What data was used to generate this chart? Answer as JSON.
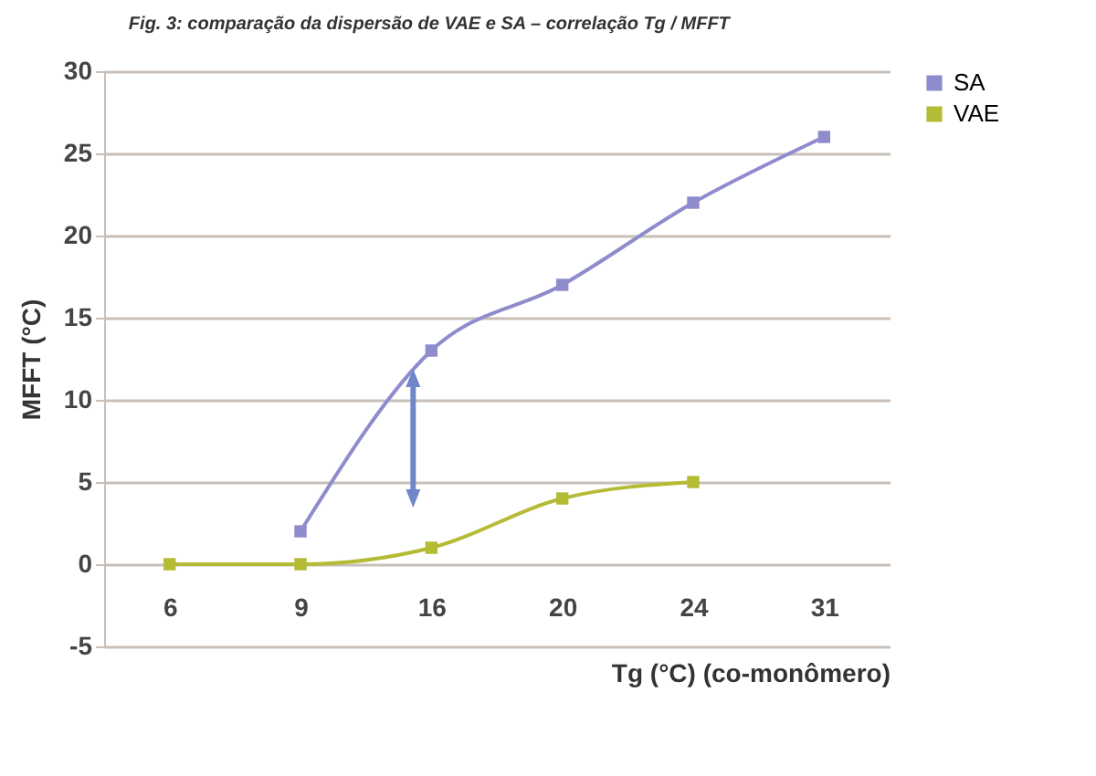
{
  "chart_data": {
    "type": "line",
    "title": "Fig. 3: comparação da dispersão de VAE e SA – correlação Tg / MFFT",
    "xlabel": "Tg  (°C) (co-monômero)",
    "ylabel": "MFFT (°C)",
    "categories": [
      "6",
      "9",
      "16",
      "20",
      "24",
      "31"
    ],
    "series": [
      {
        "name": "SA",
        "color": "#8e8ccc",
        "values": [
          null,
          2,
          13,
          17,
          22,
          26
        ]
      },
      {
        "name": "VAE",
        "color": "#b5bb35",
        "values": [
          0,
          0,
          1,
          4,
          5,
          null
        ]
      }
    ],
    "ylim": [
      -5,
      30
    ],
    "yticks": [
      -5,
      0,
      5,
      10,
      15,
      20,
      25,
      30
    ],
    "grid": "y",
    "legend": "right",
    "marker": "square",
    "line_style": "solid"
  }
}
